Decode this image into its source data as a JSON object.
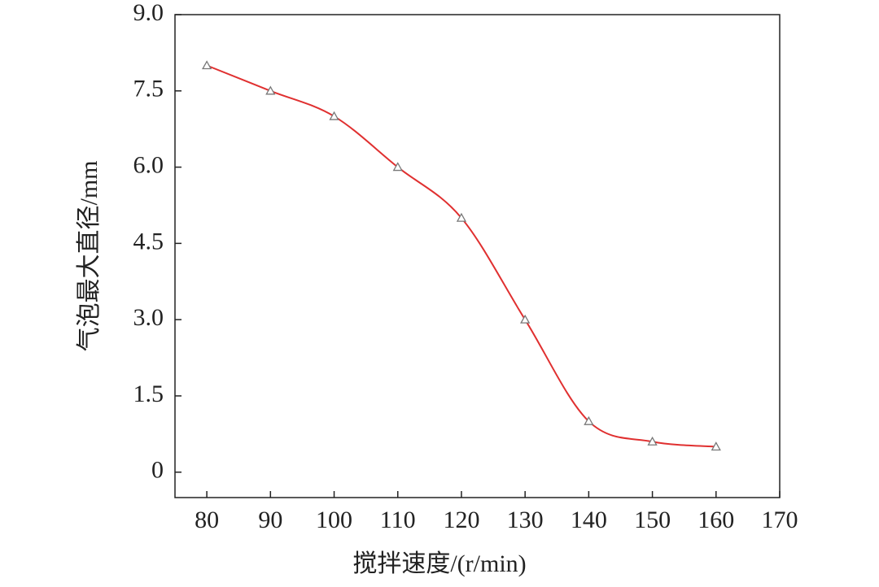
{
  "chart_data": {
    "type": "line",
    "x_label": "搅拌速度/(r/min)",
    "y_label": "气泡最大直径/mm",
    "x": [
      80,
      90,
      100,
      110,
      120,
      130,
      140,
      150,
      160
    ],
    "series": [
      {
        "color": "#e03030",
        "values": [
          8.0,
          7.5,
          7.0,
          6.0,
          5.0,
          3.0,
          1.0,
          0.6,
          0.5
        ]
      }
    ],
    "xlim": [
      75,
      170
    ],
    "xticks": [
      80,
      90,
      100,
      110,
      120,
      130,
      140,
      150,
      160,
      170
    ],
    "ylim": [
      -0.5,
      9.0
    ],
    "yticks": [
      0,
      1.5,
      {
        "value": 3,
        "label": "3.0"
      },
      4.5,
      {
        "value": 6,
        "label": "6.0"
      },
      7.5,
      {
        "value": 9,
        "label": "9.0"
      }
    ],
    "smooth": true
  }
}
